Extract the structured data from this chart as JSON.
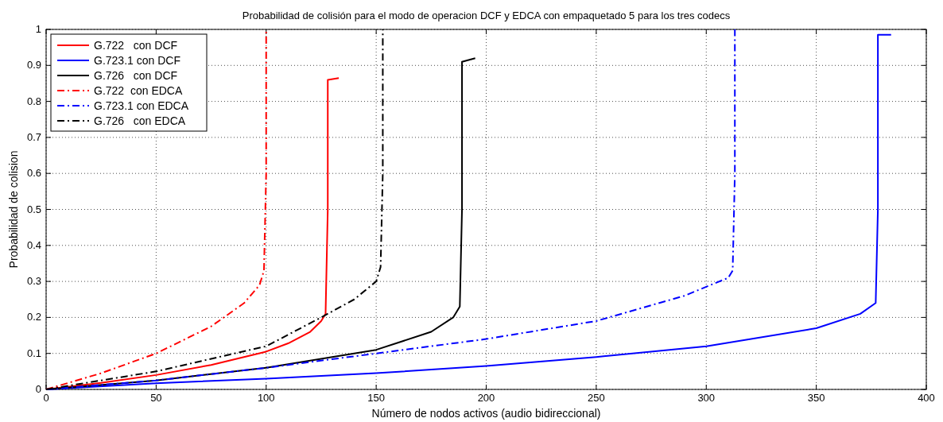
{
  "chart_data": {
    "type": "line",
    "title": "Probabilidad de colisión para el modo de operacion DCF y EDCA con empaquetado 5 para los tres codecs",
    "xlabel": "Número de nodos activos (audio bidireccional)",
    "ylabel": "Probabilidad de colision",
    "xlim": [
      0,
      400
    ],
    "ylim": [
      0,
      1
    ],
    "xticks": [
      0,
      50,
      100,
      150,
      200,
      250,
      300,
      350,
      400
    ],
    "yticks": [
      0,
      0.1,
      0.2,
      0.3,
      0.4,
      0.5,
      0.6,
      0.7,
      0.8,
      0.9,
      1
    ],
    "grid": true,
    "legend": "top left",
    "series": [
      {
        "name": "G.722   con DCF",
        "color": "#ff0000",
        "line_style": "solid",
        "x": [
          0,
          25,
          50,
          75,
          100,
          110,
          120,
          125,
          127,
          128,
          128,
          133
        ],
        "values": [
          0,
          0.018,
          0.04,
          0.068,
          0.105,
          0.128,
          0.16,
          0.19,
          0.21,
          0.5,
          0.86,
          0.865
        ]
      },
      {
        "name": "G.723.1 con DCF",
        "color": "#0000ff",
        "line_style": "solid",
        "x": [
          0,
          50,
          100,
          150,
          200,
          250,
          300,
          350,
          370,
          377,
          378,
          378,
          384
        ],
        "values": [
          0,
          0.017,
          0.03,
          0.045,
          0.065,
          0.09,
          0.12,
          0.17,
          0.21,
          0.24,
          0.5,
          0.985,
          0.985
        ]
      },
      {
        "name": "G.726   con DCF",
        "color": "#000000",
        "line_style": "solid",
        "x": [
          0,
          50,
          100,
          150,
          175,
          185,
          188,
          189,
          189,
          195
        ],
        "values": [
          0,
          0.025,
          0.06,
          0.11,
          0.16,
          0.2,
          0.23,
          0.5,
          0.91,
          0.92
        ]
      },
      {
        "name": "G.722  con EDCA",
        "color": "#ff0000",
        "line_style": "dashdot",
        "x": [
          0,
          25,
          50,
          75,
          90,
          97,
          99,
          100,
          100
        ],
        "values": [
          0,
          0.045,
          0.1,
          0.175,
          0.24,
          0.29,
          0.33,
          0.6,
          1
        ]
      },
      {
        "name": "G.723.1 con EDCA",
        "color": "#0000ff",
        "line_style": "dashdot",
        "x": [
          0,
          50,
          100,
          150,
          200,
          250,
          290,
          310,
          312,
          313,
          313
        ],
        "values": [
          0,
          0.025,
          0.06,
          0.1,
          0.14,
          0.19,
          0.26,
          0.31,
          0.33,
          0.6,
          1
        ]
      },
      {
        "name": "G.726   con EDCA",
        "color": "#000000",
        "line_style": "dashdot",
        "x": [
          0,
          50,
          100,
          125,
          140,
          150,
          152,
          153,
          153
        ],
        "values": [
          0,
          0.05,
          0.12,
          0.2,
          0.25,
          0.3,
          0.34,
          0.6,
          1
        ]
      }
    ]
  }
}
